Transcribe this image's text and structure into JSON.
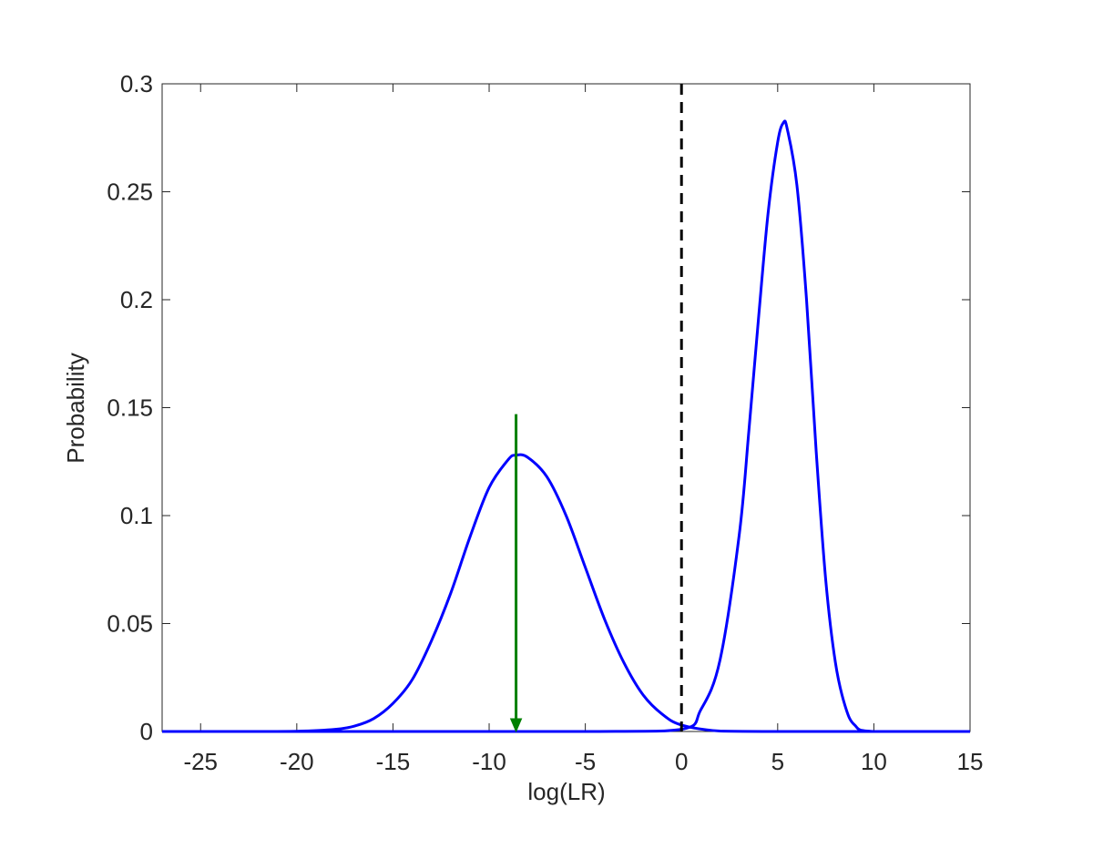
{
  "chart_data": {
    "type": "line",
    "xlabel": "log(LR)",
    "ylabel": "Probability",
    "xlim": [
      -27,
      15
    ],
    "ylim": [
      0,
      0.3
    ],
    "x_ticks": [
      -25,
      -20,
      -15,
      -10,
      -5,
      0,
      5,
      10,
      15
    ],
    "x_tick_labels": [
      "-25",
      "-20",
      "-15",
      "-10",
      "-5",
      "0",
      "5",
      "10",
      "15"
    ],
    "y_ticks": [
      0,
      0.05,
      0.1,
      0.15,
      0.2,
      0.25,
      0.3
    ],
    "y_tick_labels": [
      "0",
      "0.05",
      "0.1",
      "0.15",
      "0.2",
      "0.25",
      "0.3"
    ],
    "grid": false,
    "series": [
      {
        "color": "#0000ff",
        "peak_x": -8.6,
        "peak_y": 0.128,
        "x": [
          -27,
          -22,
          -20,
          -18,
          -17,
          -16,
          -15,
          -14,
          -13,
          -12,
          -11,
          -10,
          -9,
          -8.6,
          -8,
          -7,
          -6,
          -5,
          -4,
          -3,
          -2,
          -1,
          0,
          2,
          5,
          10,
          15
        ],
        "y": [
          0,
          0,
          0.0001,
          0.001,
          0.0025,
          0.006,
          0.013,
          0.024,
          0.042,
          0.064,
          0.09,
          0.113,
          0.126,
          0.128,
          0.127,
          0.118,
          0.1,
          0.076,
          0.052,
          0.032,
          0.017,
          0.008,
          0.003,
          0.0002,
          0,
          0,
          0
        ]
      },
      {
        "color": "#0000ff",
        "peak_x": 5.3,
        "peak_y": 0.282,
        "x": [
          -27,
          -5,
          0,
          1,
          2,
          3,
          3.5,
          4,
          4.5,
          5,
          5.3,
          5.5,
          6,
          6.5,
          7,
          7.5,
          8,
          8.5,
          9,
          10,
          15
        ],
        "y": [
          0,
          0,
          0.001,
          0.01,
          0.033,
          0.091,
          0.139,
          0.191,
          0.24,
          0.273,
          0.282,
          0.279,
          0.253,
          0.2,
          0.13,
          0.07,
          0.032,
          0.012,
          0.003,
          0,
          0
        ]
      }
    ],
    "threshold_line": {
      "x": 0,
      "color": "#000000",
      "style": "dashed"
    },
    "arrow": {
      "x": -8.6,
      "y_from": 0.147,
      "y_to": 0,
      "color": "#008000"
    }
  }
}
